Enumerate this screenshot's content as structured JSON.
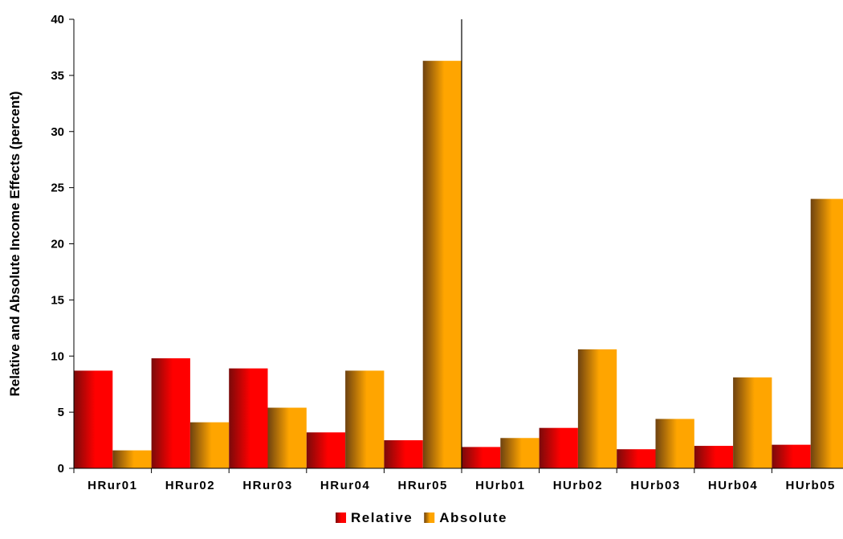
{
  "chart_data": {
    "type": "bar",
    "title": "",
    "xlabel": "",
    "ylabel": "Relative and Absolute Income Effects (percent)",
    "categories": [
      "HRur01",
      "HRur02",
      "HRur03",
      "HRur04",
      "HRur05",
      "HUrb01",
      "HUrb02",
      "HUrb03",
      "HUrb04",
      "HUrb05"
    ],
    "series": [
      {
        "name": "Relative",
        "values": [
          8.7,
          9.8,
          8.9,
          3.2,
          2.5,
          1.9,
          3.6,
          1.7,
          2.0,
          2.1
        ],
        "color_light": "#ff0000",
        "color_dark": "#7a0a0a"
      },
      {
        "name": "Absolute",
        "values": [
          1.6,
          4.1,
          5.4,
          8.7,
          36.3,
          2.7,
          10.6,
          4.4,
          8.1,
          24.0
        ],
        "color_light": "#ffa500",
        "color_dark": "#6e4210"
      }
    ],
    "ylim": [
      0,
      40
    ],
    "yticks": [
      "0",
      "5",
      "10",
      "15",
      "20",
      "25",
      "30",
      "35",
      "40"
    ],
    "divider_after_category": "HRur05",
    "grid": false,
    "legend_position": "bottom-center"
  }
}
